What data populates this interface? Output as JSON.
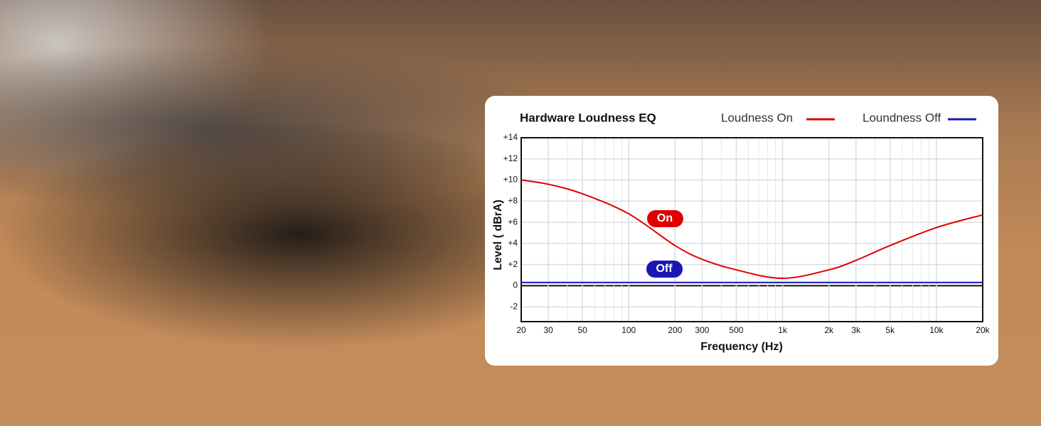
{
  "chart_data": {
    "type": "line",
    "title": "Hardware Loudness EQ",
    "xlabel": "Frequency (Hz)",
    "ylabel": "Level ( dBrA)",
    "xscale": "log",
    "grid": true,
    "xlim": [
      20,
      20000
    ],
    "xticks": [
      20,
      30,
      50,
      100,
      200,
      300,
      500,
      {
        "value": 1000,
        "label": "1k"
      },
      {
        "value": 2000,
        "label": "2k"
      },
      {
        "value": 3000,
        "label": "3k"
      },
      {
        "value": 5000,
        "label": "5k"
      },
      {
        "value": 10000,
        "label": "10k"
      },
      {
        "value": 20000,
        "label": "20k"
      }
    ],
    "xminorticks": [
      40,
      60,
      70,
      80,
      90,
      400,
      600,
      700,
      800,
      900,
      4000,
      6000,
      7000,
      8000,
      9000
    ],
    "ylim": [
      -3.4,
      14
    ],
    "yticks": [
      {
        "value": 14,
        "label": "+14"
      },
      {
        "value": 12,
        "label": "+12"
      },
      {
        "value": 10,
        "label": "+10"
      },
      {
        "value": 8,
        "label": "+8"
      },
      {
        "value": 6,
        "label": "+6"
      },
      {
        "value": 4,
        "label": "+4"
      },
      {
        "value": 2,
        "label": "+2"
      },
      0,
      -2
    ],
    "series": [
      {
        "name": "Loudness On",
        "color": "#e00000",
        "x": [
          20,
          30,
          50,
          100,
          200,
          300,
          500,
          1000,
          2000,
          3000,
          5000,
          10000,
          20000
        ],
        "values": [
          10,
          9.6,
          8.7,
          6.8,
          3.8,
          2.5,
          1.5,
          0.7,
          1.5,
          2.4,
          3.8,
          5.5,
          6.7
        ]
      },
      {
        "name": "Loundness Off",
        "color": "#1a17b5",
        "x": [
          20,
          20000
        ],
        "values": [
          0.3,
          0.3
        ]
      }
    ],
    "annotations": [
      "On",
      "Off"
    ]
  }
}
